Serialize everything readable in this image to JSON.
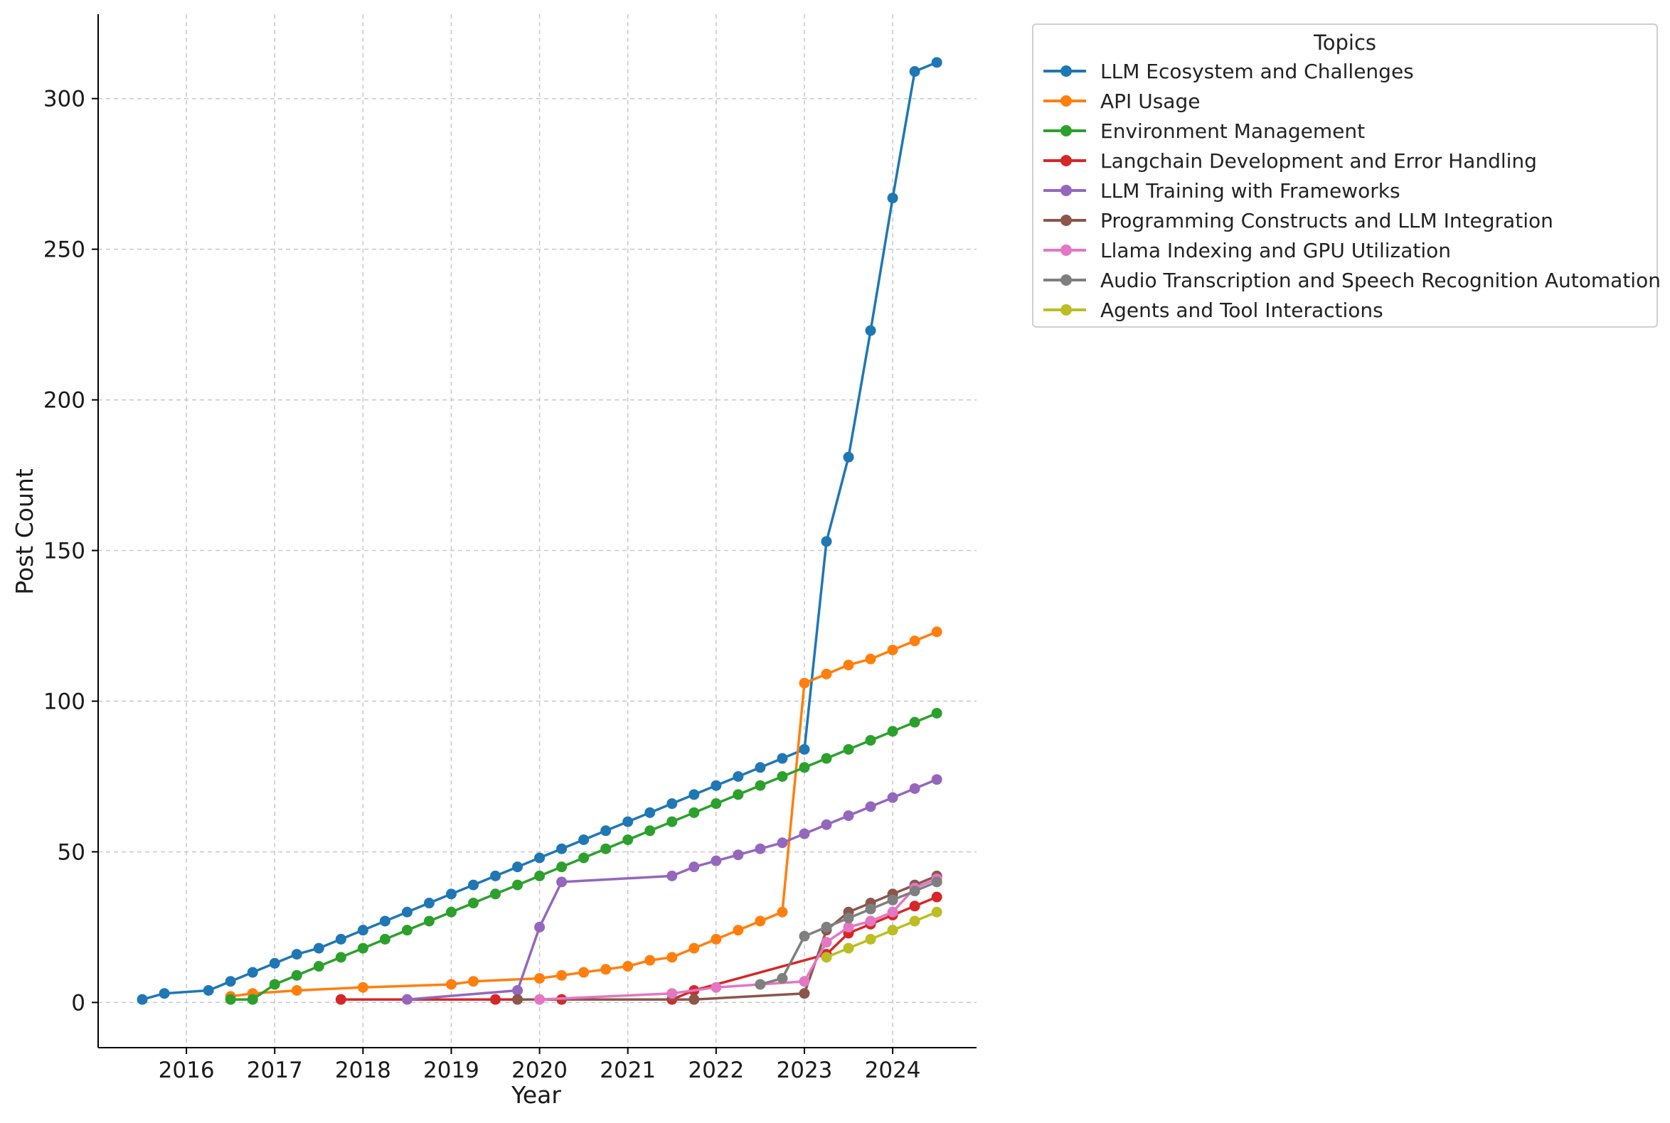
{
  "chart_data": {
    "type": "line",
    "title": "",
    "xlabel": "Year",
    "ylabel": "Post Count",
    "xlim": [
      2015.0,
      2024.95
    ],
    "ylim": [
      -15,
      328
    ],
    "xticks": [
      2016,
      2017,
      2018,
      2019,
      2020,
      2021,
      2022,
      2023,
      2024
    ],
    "yticks": [
      0,
      50,
      100,
      150,
      200,
      250,
      300
    ],
    "grid": true,
    "legend": {
      "title": "Topics",
      "placement": "outside-top-right"
    },
    "series": [
      {
        "name": "LLM Ecosystem and Challenges",
        "color": "#1f77b4",
        "x": [
          2015.5,
          2015.75,
          2016.25,
          2016.5,
          2016.75,
          2017.0,
          2017.25,
          2017.5,
          2017.75,
          2018.0,
          2018.25,
          2018.5,
          2018.75,
          2019.0,
          2019.25,
          2019.5,
          2019.75,
          2020.0,
          2020.25,
          2020.5,
          2020.75,
          2021.0,
          2021.25,
          2021.5,
          2021.75,
          2022.0,
          2022.25,
          2022.5,
          2022.75,
          2023.0,
          2023.25,
          2023.5,
          2023.75,
          2024.0,
          2024.25,
          2024.5
        ],
        "y": [
          1,
          3,
          4,
          7,
          10,
          13,
          16,
          18,
          21,
          24,
          27,
          30,
          33,
          36,
          39,
          42,
          45,
          48,
          51,
          54,
          57,
          60,
          63,
          66,
          69,
          72,
          75,
          78,
          81,
          84,
          153,
          181,
          223,
          267,
          309,
          312
        ]
      },
      {
        "name": "API Usage",
        "color": "#ff7f0e",
        "x": [
          2016.5,
          2016.75,
          2017.25,
          2018.0,
          2019.0,
          2019.25,
          2020.0,
          2020.25,
          2020.5,
          2020.75,
          2021.0,
          2021.25,
          2021.5,
          2021.75,
          2022.0,
          2022.25,
          2022.5,
          2022.75,
          2023.0,
          2023.25,
          2023.5,
          2023.75,
          2024.0,
          2024.25,
          2024.5
        ],
        "y": [
          2,
          3,
          4,
          5,
          6,
          7,
          8,
          9,
          10,
          11,
          12,
          14,
          15,
          18,
          21,
          24,
          27,
          30,
          106,
          109,
          112,
          114,
          117,
          120,
          123
        ]
      },
      {
        "name": "Environment Management",
        "color": "#2ca02c",
        "x": [
          2016.5,
          2016.75,
          2017.0,
          2017.25,
          2017.5,
          2017.75,
          2018.0,
          2018.25,
          2018.5,
          2018.75,
          2019.0,
          2019.25,
          2019.5,
          2019.75,
          2020.0,
          2020.25,
          2020.5,
          2020.75,
          2021.0,
          2021.25,
          2021.5,
          2021.75,
          2022.0,
          2022.25,
          2022.5,
          2022.75,
          2023.0,
          2023.25,
          2023.5,
          2023.75,
          2024.0,
          2024.25,
          2024.5
        ],
        "y": [
          1,
          1,
          6,
          9,
          12,
          15,
          18,
          21,
          24,
          27,
          30,
          33,
          36,
          39,
          42,
          45,
          48,
          51,
          54,
          57,
          60,
          63,
          66,
          69,
          72,
          75,
          78,
          81,
          84,
          87,
          90,
          93,
          96
        ]
      },
      {
        "name": "Langchain Development and Error Handling",
        "color": "#d62728",
        "x": [
          2017.75,
          2019.5,
          2020.25,
          2021.5,
          2021.75,
          2023.25,
          2023.5,
          2023.75,
          2024.0,
          2024.25,
          2024.5
        ],
        "y": [
          1,
          1,
          1,
          1,
          4,
          16,
          23,
          26,
          29,
          32,
          35
        ]
      },
      {
        "name": "LLM Training with Frameworks",
        "color": "#9467bd",
        "x": [
          2018.5,
          2019.75,
          2020.0,
          2020.25,
          2021.5,
          2021.75,
          2022.0,
          2022.25,
          2022.5,
          2022.75,
          2023.0,
          2023.25,
          2023.5,
          2023.75,
          2024.0,
          2024.25,
          2024.5
        ],
        "y": [
          1,
          4,
          25,
          40,
          42,
          45,
          47,
          49,
          51,
          53,
          56,
          59,
          62,
          65,
          68,
          71,
          74
        ]
      },
      {
        "name": "Programming Constructs and LLM Integration",
        "color": "#8c564b",
        "x": [
          2019.75,
          2021.75,
          2023.0,
          2023.25,
          2023.5,
          2023.75,
          2024.0,
          2024.25,
          2024.5
        ],
        "y": [
          1,
          1,
          3,
          24,
          30,
          33,
          36,
          39,
          42
        ]
      },
      {
        "name": "Llama Indexing and GPU Utilization",
        "color": "#e377c2",
        "x": [
          2020.0,
          2021.5,
          2022.0,
          2023.0,
          2023.25,
          2023.5,
          2023.75,
          2024.0,
          2024.25,
          2024.5
        ],
        "y": [
          1,
          3,
          5,
          7,
          20,
          25,
          27,
          30,
          38,
          41
        ]
      },
      {
        "name": "Audio Transcription and Speech Recognition Automation",
        "color": "#7f7f7f",
        "x": [
          2022.5,
          2022.75,
          2023.0,
          2023.25,
          2023.5,
          2023.75,
          2024.0,
          2024.25,
          2024.5
        ],
        "y": [
          6,
          8,
          22,
          25,
          28,
          31,
          34,
          37,
          40
        ]
      },
      {
        "name": "Agents and Tool Interactions",
        "color": "#bcbd22",
        "x": [
          2023.25,
          2023.5,
          2023.75,
          2024.0,
          2024.25,
          2024.5
        ],
        "y": [
          15,
          18,
          21,
          24,
          27,
          30
        ]
      }
    ]
  }
}
